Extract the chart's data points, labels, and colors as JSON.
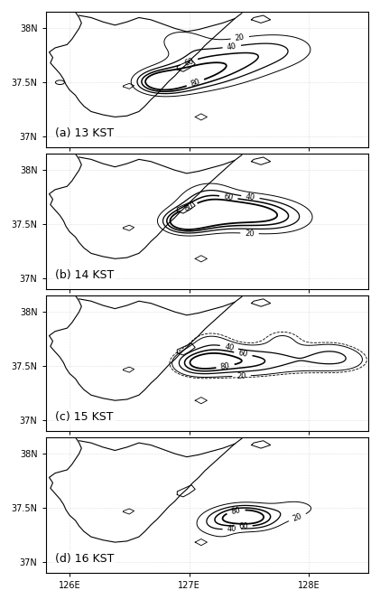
{
  "panels": [
    {
      "label": "(a) 13 KST"
    },
    {
      "label": "(b) 14 KST"
    },
    {
      "label": "(c) 15 KST"
    },
    {
      "label": "(d) 16 KST"
    }
  ],
  "lon_range": [
    125.8,
    128.5
  ],
  "lat_range": [
    36.9,
    38.15
  ],
  "lon_ticks": [
    126,
    127,
    128
  ],
  "lon_labels": [
    "126E",
    "127E",
    "128E"
  ],
  "lat_ticks": [
    37.0,
    37.5,
    38.0
  ],
  "lat_labels": [
    "37N",
    "37.5N",
    "38N"
  ],
  "contour_levels": [
    20,
    40,
    60,
    80
  ],
  "figsize": [
    4.21,
    6.74
  ],
  "dpi": 100,
  "background_color": "#ffffff",
  "tick_fontsize": 7,
  "panel_label_fontsize": 9
}
